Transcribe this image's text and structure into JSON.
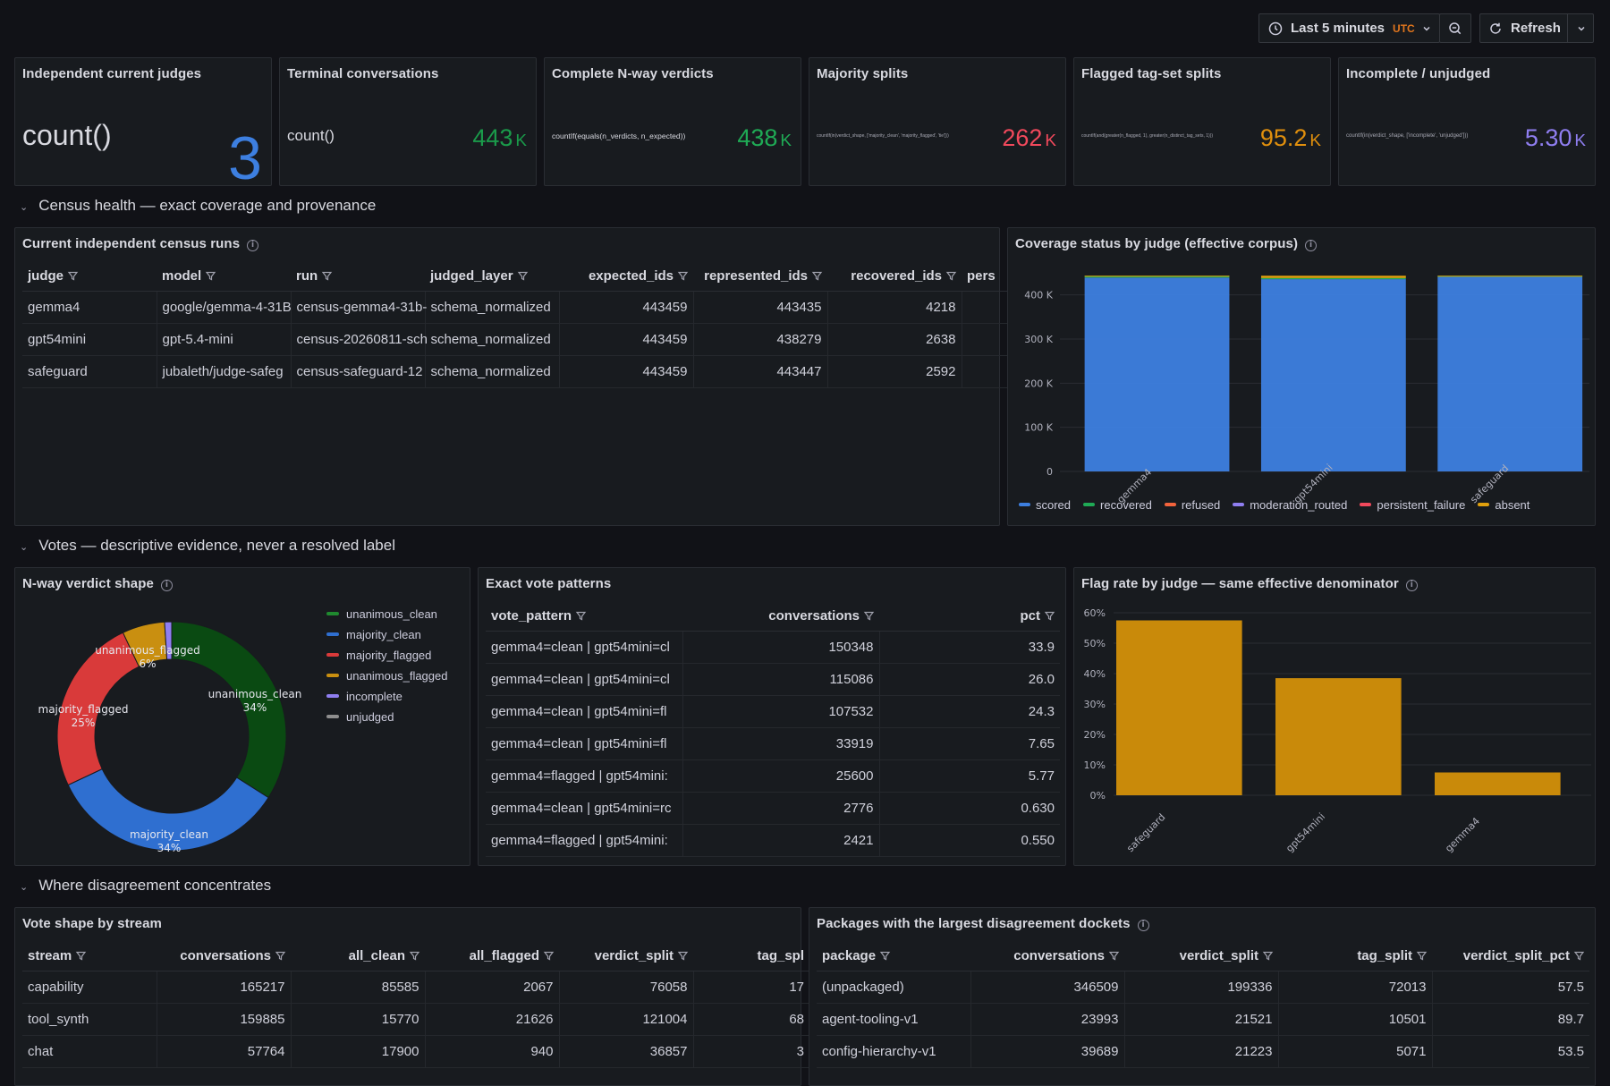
{
  "toolbar": {
    "time_range": "Last 5 minutes",
    "timezone": "UTC",
    "refresh_label": "Refresh"
  },
  "stats": [
    {
      "title": "Independent current judges",
      "expr": "count()",
      "value": "3",
      "unit": "",
      "color": "#3d7fe0"
    },
    {
      "title": "Terminal conversations",
      "expr": "count()",
      "value": "443",
      "unit": "K",
      "color": "#1a9a4a"
    },
    {
      "title": "Complete N-way verdicts",
      "expr": "countIf(equals(n_verdicts, n_expected))",
      "value": "438",
      "unit": "K",
      "color": "#1faa55"
    },
    {
      "title": "Majority splits",
      "expr": "countIf(in(verdict_shape, ['majority_clean', 'majority_flagged', 'tie']))",
      "value": "262",
      "unit": "K",
      "color": "#f2495c"
    },
    {
      "title": "Flagged tag-set splits",
      "expr": "countIf(and(greater(n_flagged, 1), greater(n_distinct_tag_sets, 1)))",
      "value": "95.2",
      "unit": "K",
      "color": "#e08f0d"
    },
    {
      "title": "Incomplete / unjudged",
      "expr": "countIf(in(verdict_shape, ['incomplete', 'unjudged']))",
      "value": "5.30",
      "unit": "K",
      "color": "#8f7ef0"
    }
  ],
  "rows": {
    "census": "Census health — exact coverage and provenance",
    "votes": "Votes — descriptive evidence, never a resolved label",
    "disagreement": "Where disagreement concentrates"
  },
  "census_table": {
    "title": "Current independent census runs",
    "columns": [
      "judge",
      "model",
      "run",
      "judged_layer",
      "expected_ids",
      "represented_ids",
      "recovered_ids",
      "pers"
    ],
    "rows": [
      [
        "gemma4",
        "google/gemma-4-31B",
        "census-gemma4-31b-",
        "schema_normalized",
        "443459",
        "443435",
        "4218"
      ],
      [
        "gpt54mini",
        "gpt-5.4-mini",
        "census-20260811-sch",
        "schema_normalized",
        "443459",
        "438279",
        "2638"
      ],
      [
        "safeguard",
        "jubaleth/judge-safeg",
        "census-safeguard-12",
        "schema_normalized",
        "443459",
        "443447",
        "2592"
      ]
    ]
  },
  "coverage_chart": {
    "title": "Coverage status by judge (effective corpus)",
    "legend": [
      {
        "name": "scored",
        "color": "#3d7fe0"
      },
      {
        "name": "recovered",
        "color": "#1faa55"
      },
      {
        "name": "refused",
        "color": "#f2633c"
      },
      {
        "name": "moderation_routed",
        "color": "#8f7ef0"
      },
      {
        "name": "persistent_failure",
        "color": "#f2495c"
      },
      {
        "name": "absent",
        "color": "#e0a00d"
      }
    ]
  },
  "verdict_shape": {
    "title": "N-way verdict shape",
    "labels": [
      {
        "name": "unanimous_clean",
        "pct": "34%"
      },
      {
        "name": "majority_clean",
        "pct": "34%"
      },
      {
        "name": "majority_flagged",
        "pct": "25%"
      },
      {
        "name": "unanimous_flagged",
        "pct": "6%"
      }
    ]
  },
  "vote_patterns": {
    "title": "Exact vote patterns",
    "columns": [
      "vote_pattern",
      "conversations",
      "pct"
    ],
    "rows": [
      [
        "gemma4=clean | gpt54mini=cl",
        "150348",
        "33.9"
      ],
      [
        "gemma4=clean | gpt54mini=cl",
        "115086",
        "26.0"
      ],
      [
        "gemma4=clean | gpt54mini=fl",
        "107532",
        "24.3"
      ],
      [
        "gemma4=clean | gpt54mini=fl",
        "33919",
        "7.65"
      ],
      [
        "gemma4=flagged | gpt54mini:",
        "25600",
        "5.77"
      ],
      [
        "gemma4=clean | gpt54mini=rc",
        "2776",
        "0.630"
      ],
      [
        "gemma4=flagged | gpt54mini:",
        "2421",
        "0.550"
      ]
    ]
  },
  "flag_rate": {
    "title": "Flag rate by judge — same effective denominator"
  },
  "stream_table": {
    "title": "Vote shape by stream",
    "columns": [
      "stream",
      "conversations",
      "all_clean",
      "all_flagged",
      "verdict_split",
      "tag_spl"
    ],
    "rows": [
      [
        "capability",
        "165217",
        "85585",
        "2067",
        "76058",
        "17"
      ],
      [
        "tool_synth",
        "159885",
        "15770",
        "21626",
        "121004",
        "68"
      ],
      [
        "chat",
        "57764",
        "17900",
        "940",
        "36857",
        "3"
      ]
    ]
  },
  "package_table": {
    "title": "Packages with the largest disagreement dockets",
    "columns": [
      "package",
      "conversations",
      "verdict_split",
      "tag_split",
      "verdict_split_pct"
    ],
    "rows": [
      [
        "(unpackaged)",
        "346509",
        "199336",
        "72013",
        "57.5"
      ],
      [
        "agent-tooling-v1",
        "23993",
        "21521",
        "10501",
        "89.7"
      ],
      [
        "config-hierarchy-v1",
        "39689",
        "21223",
        "5071",
        "53.5"
      ]
    ]
  },
  "chart_data": [
    {
      "type": "bar",
      "title": "Coverage status by judge (effective corpus)",
      "categories": [
        "gemma4",
        "gpt54mini",
        "safeguard"
      ],
      "series": [
        {
          "name": "scored",
          "values": [
            439217,
            435641,
            440855
          ]
        },
        {
          "name": "recovered",
          "values": [
            4218,
            2638,
            2592
          ]
        },
        {
          "name": "refused",
          "values": [
            0,
            0,
            0
          ]
        },
        {
          "name": "moderation_routed",
          "values": [
            0,
            0,
            0
          ]
        },
        {
          "name": "persistent_failure",
          "values": [
            0,
            0,
            0
          ]
        },
        {
          "name": "absent",
          "values": [
            24,
            5180,
            12
          ]
        }
      ],
      "stacked": true,
      "yticks": [
        "0",
        "100 K",
        "200 K",
        "300 K",
        "400 K"
      ],
      "ylim": [
        0,
        450000
      ],
      "legend": "bottom"
    },
    {
      "type": "pie",
      "title": "N-way verdict shape",
      "donut": true,
      "slices": [
        {
          "name": "unanimous_clean",
          "value": 34,
          "color": "#0a4a12"
        },
        {
          "name": "majority_clean",
          "value": 34,
          "color": "#2f6fd0"
        },
        {
          "name": "majority_flagged",
          "value": 25,
          "color": "#d93a3a"
        },
        {
          "name": "unanimous_flagged",
          "value": 6,
          "color": "#c98f10"
        },
        {
          "name": "incomplete",
          "value": 1,
          "color": "#8f7ef0"
        },
        {
          "name": "unjudged",
          "value": 0,
          "color": "#8e8e8e"
        }
      ],
      "legend": "right"
    },
    {
      "type": "bar",
      "title": "Flag rate by judge — same effective denominator",
      "categories": [
        "safeguard",
        "gpt54mini",
        "gemma4"
      ],
      "values": [
        57.5,
        38.5,
        7.5
      ],
      "color": "#c98a0a",
      "yticks": [
        "0%",
        "10%",
        "20%",
        "30%",
        "40%",
        "50%",
        "60%"
      ],
      "ylim": [
        0,
        60
      ]
    }
  ]
}
